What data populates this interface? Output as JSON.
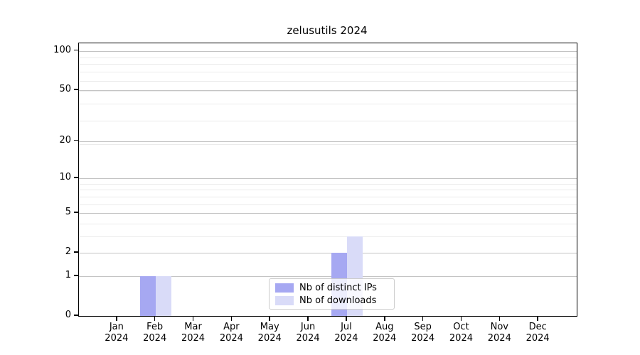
{
  "chart_data": {
    "type": "bar",
    "title": "zelusutils 2024",
    "x_categories": [
      "Jan",
      "Feb",
      "Mar",
      "Apr",
      "May",
      "Jun",
      "Jul",
      "Aug",
      "Sep",
      "Oct",
      "Nov",
      "Dec"
    ],
    "x_year": "2024",
    "series": [
      {
        "name": "Nb of distinct IPs",
        "color": "#a6a8f2",
        "values": [
          0,
          1,
          0,
          0,
          0,
          0,
          2,
          0,
          0,
          0,
          0,
          0
        ]
      },
      {
        "name": "Nb of downloads",
        "color": "#d9dbf8",
        "values": [
          0,
          1,
          0,
          0,
          0,
          0,
          3,
          0,
          0,
          0,
          0,
          0
        ]
      }
    ],
    "yscale": "log1p",
    "yticks": [
      0,
      1,
      2,
      5,
      10,
      20,
      50,
      100
    ],
    "ylim": [
      0,
      114
    ],
    "grid": "both",
    "legend_position": "lower center"
  }
}
